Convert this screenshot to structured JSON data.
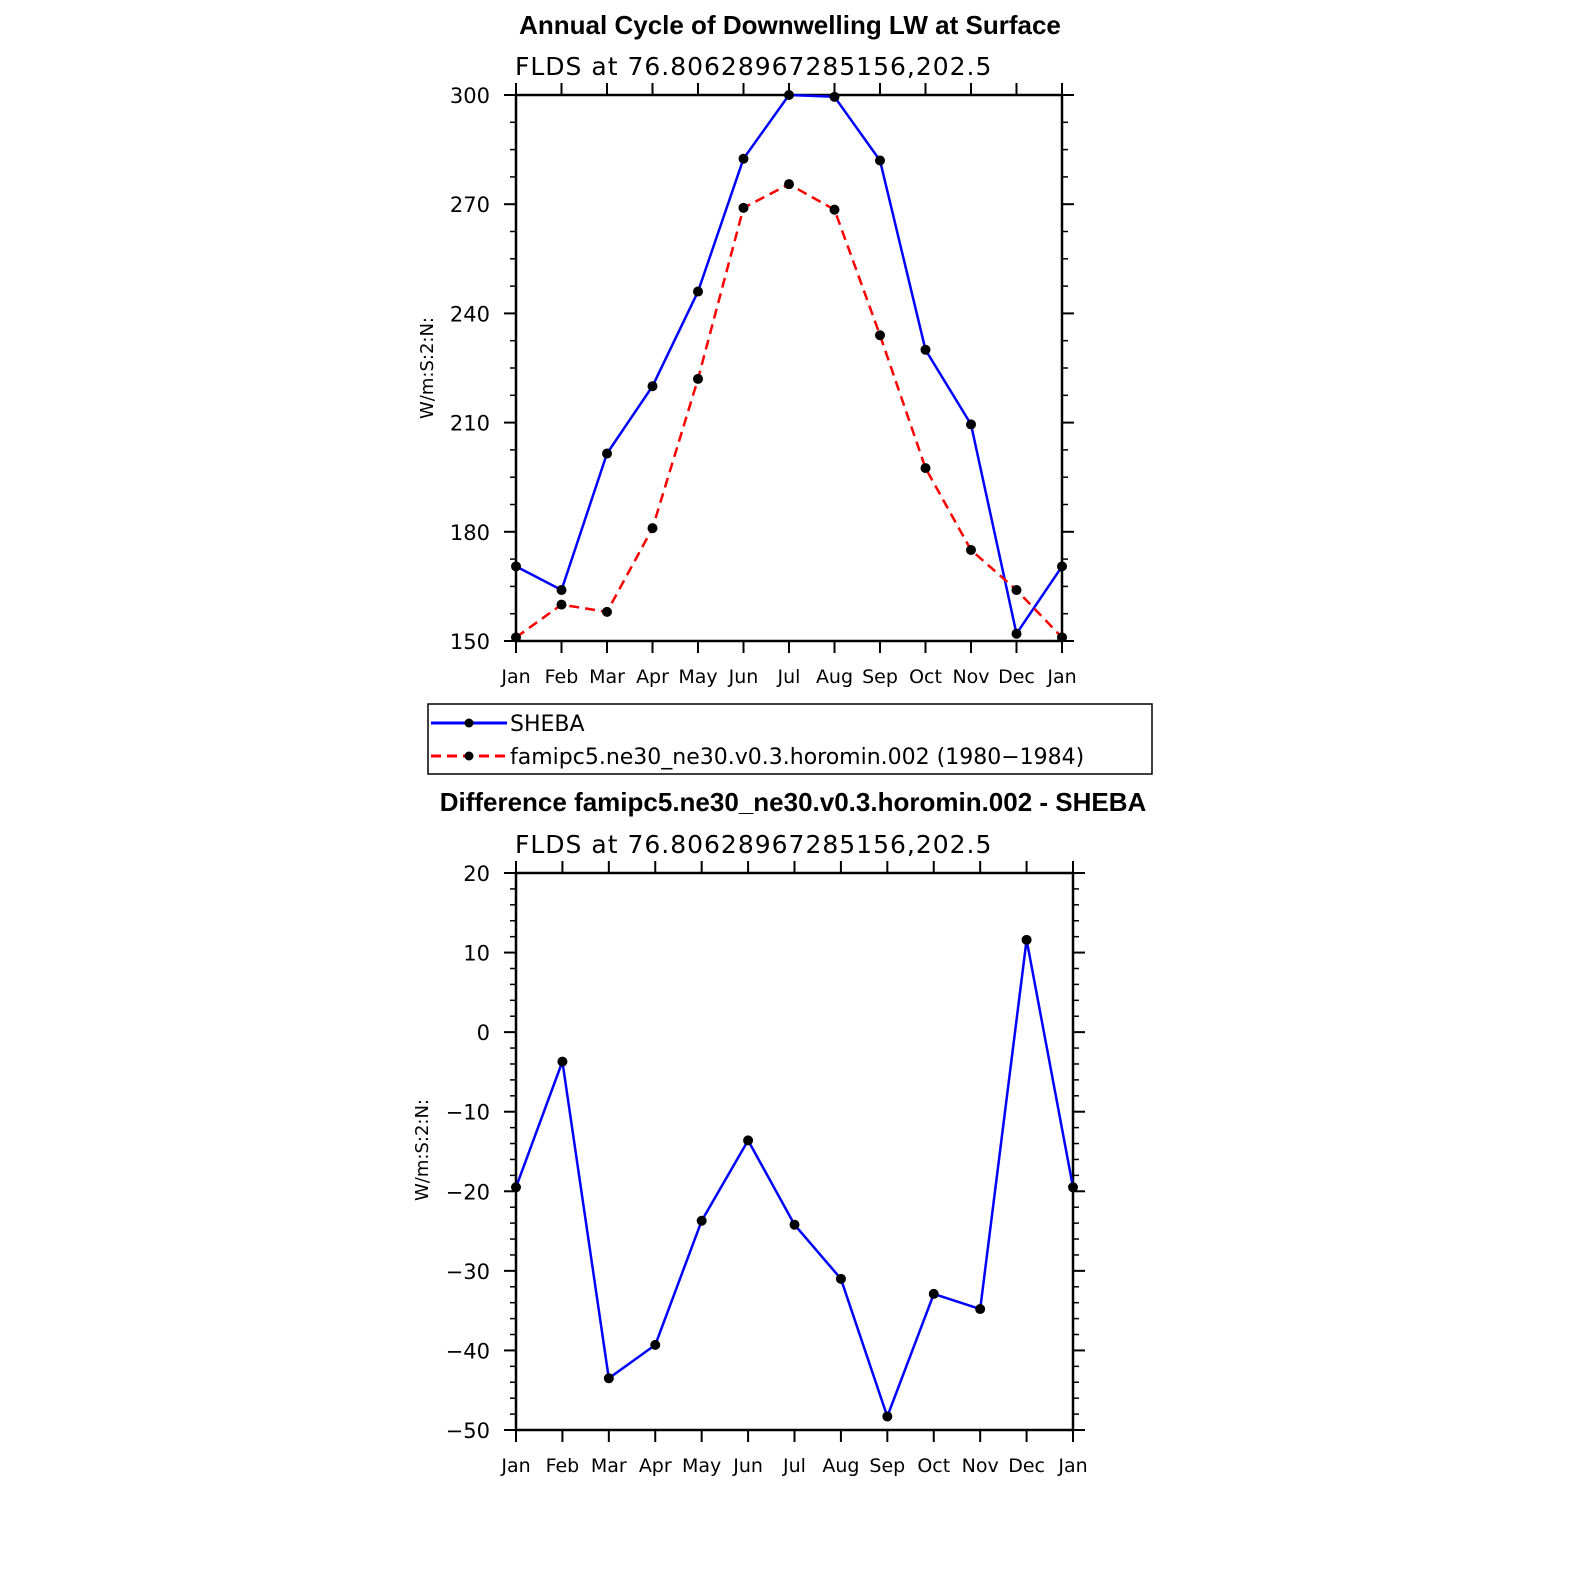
{
  "chart_data": [
    {
      "type": "line",
      "title": "Annual Cycle of Downwelling LW at Surface",
      "subtitle": "FLDS at 76.80628967285156,202.5",
      "ylabel": "W/m:S:2:N:",
      "xlabel": "",
      "categories": [
        "Jan",
        "Feb",
        "Mar",
        "Apr",
        "May",
        "Jun",
        "Jul",
        "Aug",
        "Sep",
        "Oct",
        "Nov",
        "Dec",
        "Jan"
      ],
      "ylim": [
        150,
        300
      ],
      "yticks": [
        150,
        180,
        210,
        240,
        270,
        300
      ],
      "series": [
        {
          "name": "SHEBA",
          "color": "#0000ff",
          "dash": "solid",
          "values": [
            170.5,
            164,
            201.5,
            220,
            246,
            282.5,
            300,
            299.5,
            282,
            230,
            209.5,
            152,
            170.5
          ]
        },
        {
          "name": "famipc5.ne30_ne30.v0.3.horomin.002 (1980−1984)",
          "color": "#ff0000",
          "dash": "dashed",
          "values": [
            151,
            160,
            158,
            181,
            222,
            269,
            275.5,
            268.5,
            234,
            197.5,
            175,
            164,
            151
          ]
        }
      ],
      "legend": "bottom"
    },
    {
      "type": "line",
      "title": "Difference famipc5.ne30_ne30.v0.3.horomin.002 - SHEBA",
      "subtitle": "FLDS at 76.80628967285156,202.5",
      "ylabel": "W/m:S:2:N:",
      "xlabel": "",
      "categories": [
        "Jan",
        "Feb",
        "Mar",
        "Apr",
        "May",
        "Jun",
        "Jul",
        "Aug",
        "Sep",
        "Oct",
        "Nov",
        "Dec",
        "Jan"
      ],
      "ylim": [
        -50,
        20
      ],
      "yticks": [
        20,
        10,
        0,
        -10,
        -20,
        -30,
        -40,
        -50
      ],
      "ytick_labels": [
        "20",
        "10",
        "0",
        "−10",
        "−20",
        "−30",
        "−40",
        "−50"
      ],
      "series": [
        {
          "color": "#0000ff",
          "dash": "solid",
          "values": [
            -19.5,
            -3.7,
            -43.5,
            -39.3,
            -23.7,
            -13.6,
            -24.2,
            -31,
            -48.3,
            -32.9,
            -34.8,
            11.6,
            -19.5
          ]
        }
      ]
    }
  ]
}
